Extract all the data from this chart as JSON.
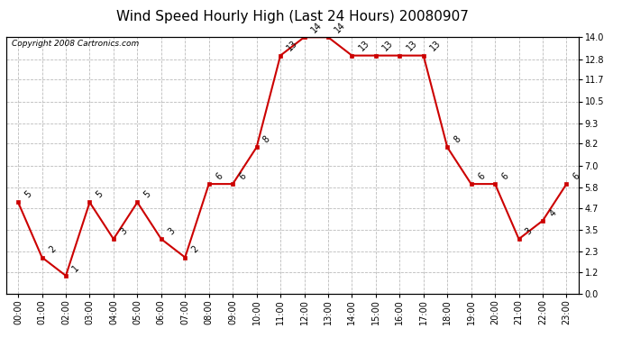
{
  "title": "Wind Speed Hourly High (Last 24 Hours) 20080907",
  "copyright": "Copyright 2008 Cartronics.com",
  "hours": [
    "00:00",
    "01:00",
    "02:00",
    "03:00",
    "04:00",
    "05:00",
    "06:00",
    "07:00",
    "08:00",
    "09:00",
    "10:00",
    "11:00",
    "12:00",
    "13:00",
    "14:00",
    "15:00",
    "16:00",
    "17:00",
    "18:00",
    "19:00",
    "20:00",
    "21:00",
    "22:00",
    "23:00"
  ],
  "values": [
    5,
    2,
    1,
    5,
    3,
    5,
    3,
    2,
    6,
    6,
    8,
    13,
    14,
    14,
    13,
    13,
    13,
    13,
    8,
    6,
    6,
    3,
    4,
    6
  ],
  "ylim": [
    0,
    14.0
  ],
  "yticks": [
    0.0,
    1.2,
    2.3,
    3.5,
    4.7,
    5.8,
    7.0,
    8.2,
    9.3,
    10.5,
    11.7,
    12.8,
    14.0
  ],
  "line_color": "#cc0000",
  "marker_color": "#cc0000",
  "bg_color": "#ffffff",
  "grid_color": "#bbbbbb",
  "title_fontsize": 11,
  "copyright_fontsize": 6.5,
  "label_fontsize": 7,
  "tick_fontsize": 7
}
